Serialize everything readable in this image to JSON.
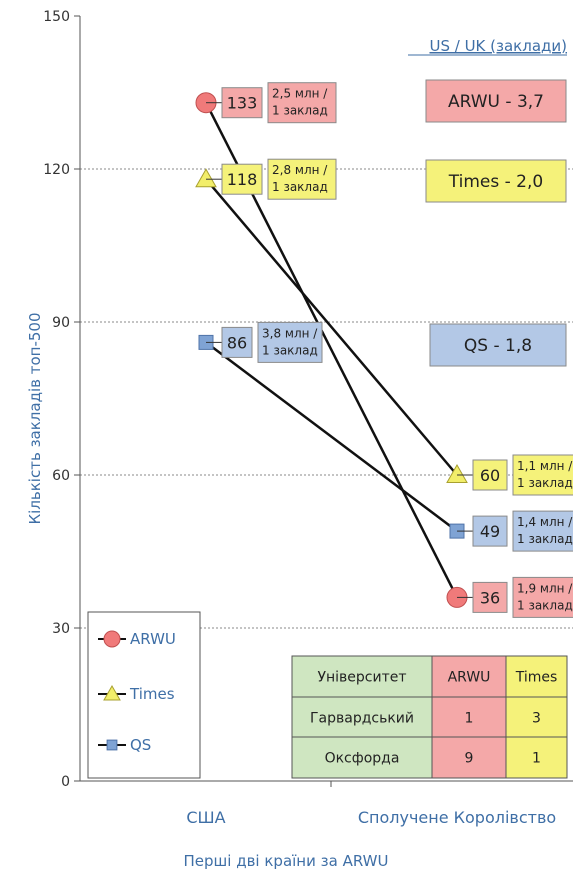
{
  "chart_data": {
    "type": "line",
    "ylabel": "Кількість закладів топ-500",
    "xlabel": "Перші дві країни за ARWU",
    "ylim": [
      0,
      150
    ],
    "yticks": [
      "0",
      "30",
      "60",
      "90",
      "120",
      "150"
    ],
    "grid": true,
    "legend": "bottom-left",
    "categories": [
      "США",
      "Сполучене Королівство"
    ],
    "corner_label": "US / UK (заклади)",
    "series": [
      {
        "name": "ARWU",
        "marker": "circle",
        "color": "#f07a7a",
        "values": [
          133,
          36
        ],
        "labels": [
          "133",
          "36"
        ],
        "notes": [
          [
            "2,5 млн /",
            "1 заклад"
          ],
          [
            "1,9 млн /",
            "1 заклад"
          ]
        ],
        "badge_color": "#f4a8a8"
      },
      {
        "name": "Times",
        "marker": "triangle",
        "color": "#f2ee6a",
        "values": [
          118,
          60
        ],
        "labels": [
          "118",
          "60"
        ],
        "notes": [
          [
            "2,8 млн /",
            "1 заклад"
          ],
          [
            "1,1 млн /",
            "1 заклад"
          ]
        ],
        "badge_color": "#f5f27a"
      },
      {
        "name": "QS",
        "marker": "square",
        "color": "#7fa3d4",
        "values": [
          86,
          49
        ],
        "labels": [
          "86",
          "49"
        ],
        "notes": [
          [
            "3,8 млн /",
            "1 заклад"
          ],
          [
            "1,4 млн /",
            "1 заклад"
          ]
        ],
        "badge_color": "#b3c8e6"
      }
    ],
    "ratios": [
      {
        "text": "ARWU - 3,7",
        "color": "#f4a8a8"
      },
      {
        "text": "Times - 2,0",
        "color": "#f5f27a"
      },
      {
        "text": "QS - 1,8",
        "color": "#b3c8e6"
      }
    ],
    "table": {
      "header": [
        "Університет",
        "ARWU",
        "Times"
      ],
      "rows": [
        [
          "Гарвардський",
          "1",
          "3"
        ],
        [
          "Оксфорда",
          "9",
          "1"
        ]
      ],
      "colors": {
        "first": "#cfe6c1",
        "arwu": "#f4a8a8",
        "times": "#f5f27a"
      }
    }
  }
}
